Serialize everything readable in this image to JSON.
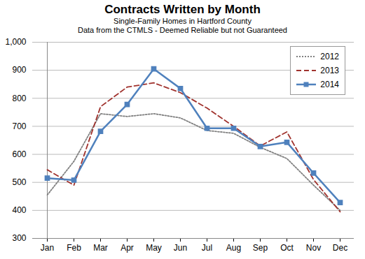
{
  "chart_data": {
    "type": "line",
    "title": "Contracts Written by Month",
    "subtitle": [
      "Single-Family Homes in Hartford County",
      "Data from the CTMLS - Deemed Reliable but not Guaranteed"
    ],
    "categories": [
      "Jan",
      "Feb",
      "Mar",
      "Apr",
      "May",
      "Jun",
      "Jul",
      "Aug",
      "Sep",
      "Oct",
      "Nov",
      "Dec"
    ],
    "series": [
      {
        "name": "2012",
        "color": "#808080",
        "line_style": "dotted",
        "values": [
          455,
          575,
          745,
          735,
          745,
          730,
          685,
          675,
          625,
          585,
          490,
          400
        ]
      },
      {
        "name": "2013",
        "color": "#a0322d",
        "line_style": "dashed",
        "values": [
          545,
          490,
          770,
          840,
          855,
          820,
          765,
          700,
          630,
          680,
          510,
          395
        ]
      },
      {
        "name": "2014",
        "color": "#4f81bd",
        "line_style": "solid",
        "marker": "square",
        "values": [
          515,
          508,
          682,
          778,
          905,
          835,
          693,
          693,
          628,
          643,
          533,
          428
        ]
      }
    ],
    "ylim": [
      300,
      1000
    ],
    "yticks": [
      300,
      400,
      500,
      600,
      700,
      800,
      900,
      {
        "value": 1000,
        "label": "1,000"
      }
    ],
    "grid": true,
    "legend": "upper right"
  }
}
